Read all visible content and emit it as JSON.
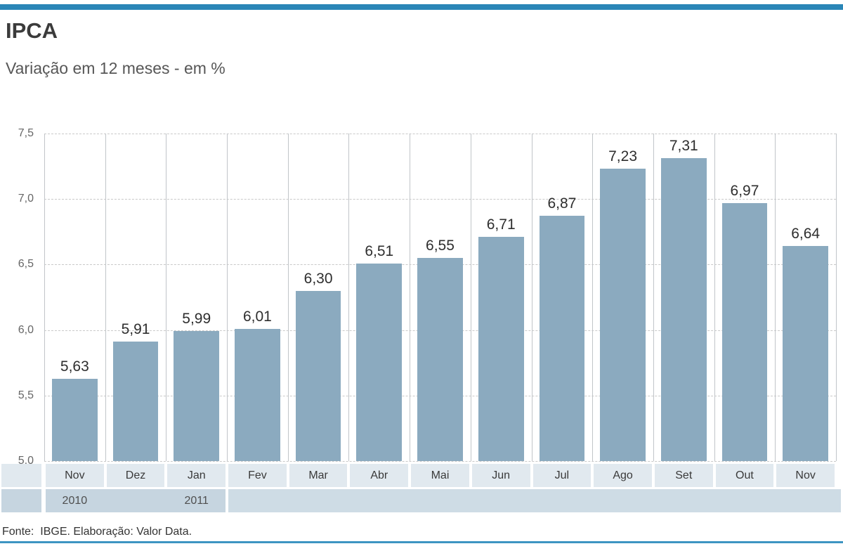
{
  "page": {
    "title": "IPCA",
    "subtitle": "Variação em 12 meses - em %",
    "source_note": "Fonte:  IBGE. Elaboração: Valor Data."
  },
  "colors": {
    "top_bar": "#2a86b7",
    "bottom_rule": "#3e95c2",
    "bar_fill": "#8baabf",
    "month_row_bg": "#e1e9ef",
    "year_row_bg_dark": "#c6d5e0",
    "year_row_bg_light": "#cedce5",
    "grid_line": "#c9c9c9",
    "column_line": "#c1c5c9"
  },
  "chart_data": {
    "type": "bar",
    "title": "IPCA",
    "subtitle": "Variação em 12 meses - em %",
    "unit": "%",
    "categories": [
      "Nov",
      "Dez",
      "Jan",
      "Fev",
      "Mar",
      "Abr",
      "Mai",
      "Jun",
      "Jul",
      "Ago",
      "Set",
      "Out",
      "Nov"
    ],
    "values": [
      5.63,
      5.91,
      5.99,
      6.01,
      6.3,
      6.51,
      6.55,
      6.71,
      6.87,
      7.23,
      7.31,
      6.97,
      6.64
    ],
    "value_labels": [
      "5,63",
      "5,91",
      "5,99",
      "6,01",
      "6,30",
      "6,51",
      "6,55",
      "6,71",
      "6,87",
      "7,23",
      "7,31",
      "6,97",
      "6,64"
    ],
    "ylim": [
      5.0,
      7.5
    ],
    "yticks": [
      {
        "value": 7.5,
        "label": "7,5"
      },
      {
        "value": 7.0,
        "label": "7,0"
      },
      {
        "value": 6.5,
        "label": "6,5"
      },
      {
        "value": 6.0,
        "label": "6,0"
      },
      {
        "value": 5.5,
        "label": "5,5"
      },
      {
        "value": 5.0,
        "label": "5,0"
      }
    ],
    "year_markers": [
      {
        "label": "2010",
        "under_category_index": 0
      },
      {
        "label": "2011",
        "under_category_index": 2
      }
    ],
    "grid": "horizontal-dashed",
    "legend": "none"
  }
}
